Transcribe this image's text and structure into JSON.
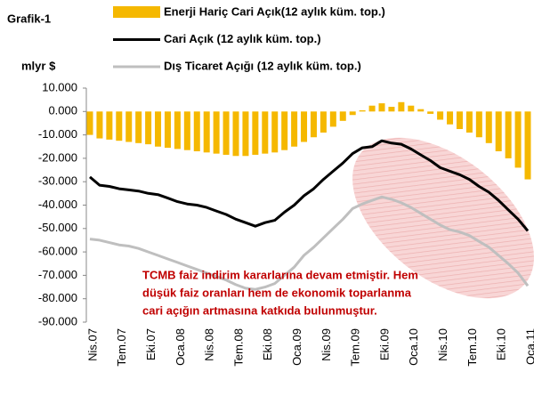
{
  "chart_data": {
    "type": "combo",
    "title": "Grafik-1",
    "y_axis_label": "mlyr $",
    "categories": [
      "Nis.07",
      null,
      null,
      "Tem.07",
      null,
      null,
      "Eki.07",
      null,
      null,
      "Oca.08",
      null,
      null,
      "Nis.08",
      null,
      null,
      "Tem.08",
      null,
      null,
      "Eki.08",
      null,
      null,
      "Oca.09",
      null,
      null,
      "Nis.09",
      null,
      null,
      "Tem.09",
      null,
      null,
      "Eki.09",
      null,
      null,
      "Oca.10",
      null,
      null,
      "Nis.10",
      null,
      null,
      "Tem.10",
      null,
      null,
      "Eki.10",
      null,
      null,
      "Oca.11"
    ],
    "series": [
      {
        "name": "Enerji Hariç Cari Açık(12 aylık küm. top.)",
        "type": "bar",
        "color": "#f5b800",
        "values": [
          -10000,
          -11500,
          -12000,
          -12500,
          -13000,
          -13500,
          -14000,
          -15000,
          -15500,
          -16000,
          -16500,
          -17000,
          -17500,
          -18000,
          -18500,
          -19000,
          -19000,
          -18500,
          -18000,
          -17500,
          -16500,
          -15000,
          -13000,
          -11000,
          -9000,
          -6500,
          -4000,
          -1500,
          500,
          2500,
          3500,
          2000,
          4000,
          2500,
          1000,
          -1000,
          -3500,
          -5500,
          -7500,
          -9000,
          -11000,
          -13500,
          -17000,
          -20000,
          -24000,
          -29000
        ]
      },
      {
        "name": "Cari Açık (12 aylık küm. top.)",
        "type": "line",
        "color": "#000000",
        "values": [
          -28000,
          -31500,
          -32000,
          -33000,
          -33500,
          -34000,
          -35000,
          -35500,
          -37000,
          -38500,
          -39500,
          -40000,
          -41000,
          -42500,
          -44000,
          -46000,
          -47500,
          -49000,
          -47500,
          -46500,
          -43000,
          -40000,
          -36000,
          -33000,
          -29000,
          -25500,
          -22000,
          -18000,
          -15500,
          -15000,
          -12500,
          -13500,
          -14000,
          -16000,
          -18500,
          -21000,
          -24000,
          -25500,
          -27000,
          -29000,
          -32000,
          -34500,
          -38000,
          -42000,
          -46000,
          -51000
        ]
      },
      {
        "name": "Dış Ticaret Açığı (12 aylık küm. top.)",
        "type": "line",
        "color": "#bfbfbf",
        "values": [
          -54500,
          -55000,
          -56000,
          -57000,
          -57500,
          -58500,
          -60000,
          -61500,
          -63000,
          -64500,
          -66000,
          -67500,
          -69000,
          -70500,
          -72000,
          -74000,
          -75500,
          -76000,
          -75000,
          -73500,
          -70000,
          -66500,
          -61500,
          -58000,
          -54000,
          -50000,
          -46000,
          -41500,
          -39500,
          -38000,
          -36500,
          -37500,
          -39000,
          -41000,
          -43500,
          -46000,
          -48500,
          -50500,
          -51500,
          -53000,
          -55500,
          -58000,
          -61500,
          -65000,
          -69000,
          -74500
        ]
      }
    ],
    "ylim": [
      -90000,
      10000
    ],
    "yticks": [
      {
        "value": -90000,
        "label": "-90.000"
      },
      {
        "value": -80000,
        "label": "-80.000"
      },
      {
        "value": -70000,
        "label": "-70.000"
      },
      {
        "value": -60000,
        "label": "-60.000"
      },
      {
        "value": -50000,
        "label": "-50.000"
      },
      {
        "value": -40000,
        "label": "-40.000"
      },
      {
        "value": -30000,
        "label": "-30.000"
      },
      {
        "value": -20000,
        "label": "-20.000"
      },
      {
        "value": -10000,
        "label": "-10.000"
      },
      {
        "value": 0,
        "label": "0.000"
      },
      {
        "value": 10000,
        "label": "10.000"
      }
    ],
    "grid": false,
    "annotation": [
      "TCMB faiz indirim kararlarına devam etmiştir. Hem",
      "düşük faiz oranları hem de ekonomik toparlanma",
      "cari açığın artmasına katkıda bulunmuştur."
    ]
  }
}
